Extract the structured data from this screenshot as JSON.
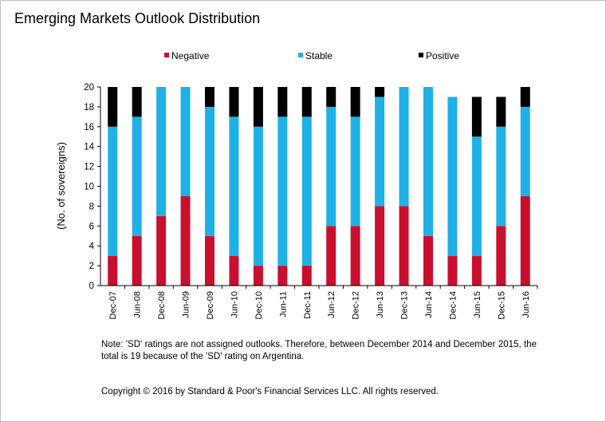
{
  "title": "Emerging Markets Outlook Distribution",
  "note": "Note: 'SD' ratings are not assigned outlooks. Therefore, between December 2014 and December 2015, the total is 19 because of the 'SD' rating on Argentina.",
  "copyright": "Copyright © 2016 by Standard & Poor's Financial Services LLC. All rights reserved.",
  "chart_data": {
    "type": "bar",
    "stacked": true,
    "title": "Emerging Markets Outlook Distribution",
    "xlabel": "",
    "ylabel": "(No. of sovereigns)",
    "ylim": [
      0,
      20
    ],
    "yticks": [
      0,
      2,
      4,
      6,
      8,
      10,
      12,
      14,
      16,
      18,
      20
    ],
    "grid": false,
    "legend_position": "top",
    "categories": [
      "Dec-07",
      "Jun-08",
      "Dec-08",
      "Jun-09",
      "Dec-09",
      "Jun-10",
      "Dec-10",
      "Jun-11",
      "Dec-11",
      "Jun-12",
      "Dec-12",
      "Jun-13",
      "Dec-13",
      "Jun-14",
      "Dec-14",
      "Jun-15",
      "Dec-15",
      "Jun-16"
    ],
    "series": [
      {
        "name": "Negative",
        "color": "#c8102e",
        "values": [
          3,
          5,
          7,
          9,
          5,
          3,
          2,
          2,
          2,
          6,
          6,
          8,
          8,
          5,
          3,
          3,
          6,
          9
        ]
      },
      {
        "name": "Stable",
        "color": "#1fb1e6",
        "values": [
          13,
          12,
          13,
          11,
          13,
          14,
          14,
          15,
          15,
          12,
          11,
          11,
          12,
          15,
          16,
          12,
          10,
          9
        ]
      },
      {
        "name": "Positive",
        "color": "#000000",
        "values": [
          4,
          3,
          0,
          0,
          2,
          3,
          4,
          3,
          3,
          2,
          3,
          1,
          0,
          0,
          0,
          4,
          3,
          2
        ]
      }
    ]
  }
}
